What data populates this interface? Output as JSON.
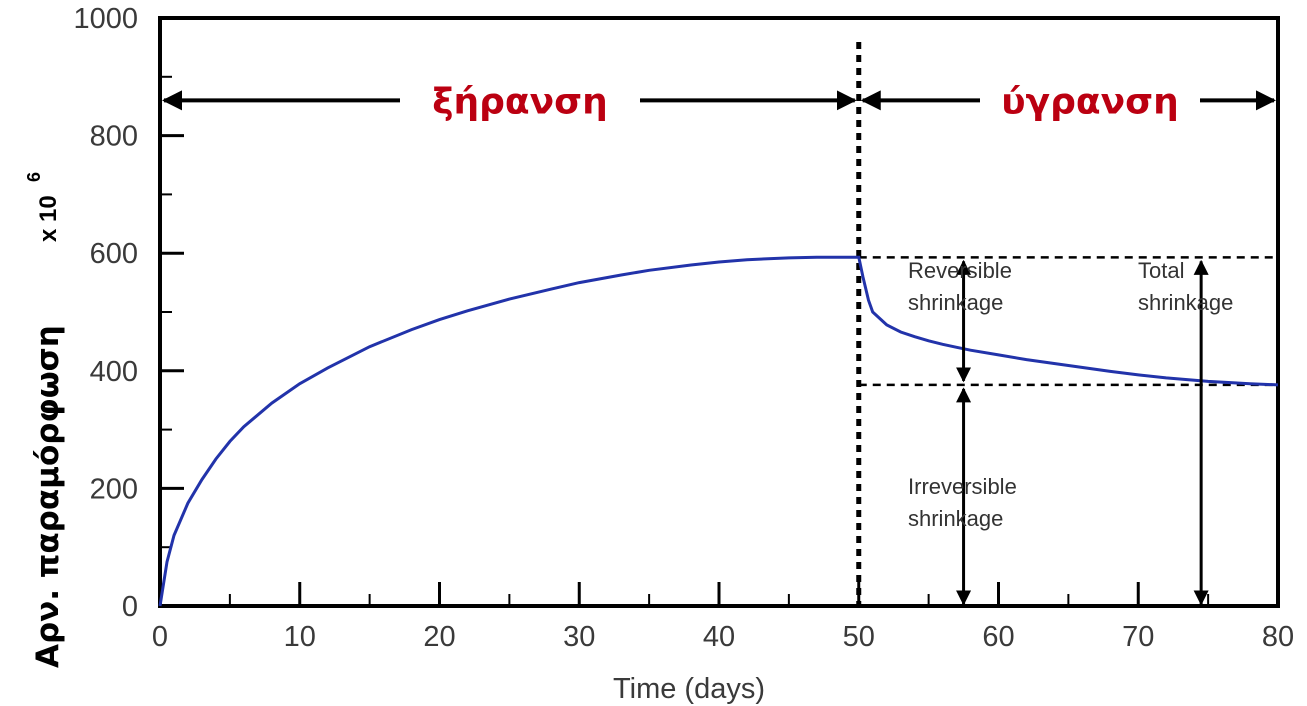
{
  "chart_data": {
    "type": "line",
    "title": "",
    "xlabel": "Time (days)",
    "ylabel": "Αρν. παραμόρφωση",
    "ylabel_suffix": "x 10",
    "ylabel_exponent": "6",
    "xlim": [
      0,
      80
    ],
    "ylim": [
      0,
      1000
    ],
    "xticks": [
      0,
      10,
      20,
      30,
      40,
      50,
      60,
      70,
      80
    ],
    "yticks": [
      0,
      200,
      400,
      600,
      800,
      1000
    ],
    "grid": false,
    "series": [
      {
        "color": "#2233aa",
        "x": [
          0,
          0.5,
          1,
          2,
          3,
          4,
          5,
          6,
          8,
          10,
          12,
          15,
          18,
          20,
          22,
          25,
          28,
          30,
          33,
          35,
          38,
          40,
          42,
          45,
          47,
          50,
          50.3,
          50.7,
          51,
          52,
          53,
          54,
          55,
          56,
          57,
          58,
          60,
          62,
          65,
          68,
          70,
          72,
          75,
          78,
          80
        ],
        "y": [
          0,
          75,
          120,
          175,
          215,
          250,
          280,
          305,
          345,
          378,
          405,
          441,
          470,
          487,
          502,
          522,
          539,
          550,
          563,
          571,
          580,
          585,
          589,
          592,
          593,
          593,
          560,
          520,
          500,
          478,
          466,
          458,
          451,
          445,
          440,
          435,
          427,
          419,
          409,
          399,
          393,
          388,
          382,
          378,
          376
        ]
      }
    ],
    "phases": [
      {
        "label": "ξήρανση",
        "from": 0,
        "to": 50,
        "color": "#bb0011"
      },
      {
        "label": "ύγρανση",
        "from": 50,
        "to": 80,
        "color": "#bb0011"
      }
    ],
    "phase_arrow_y": 860,
    "boundary_x": 50,
    "reference_levels": [
      593,
      376
    ],
    "annotations": [
      {
        "text": [
          "Reversible",
          "shrinkage"
        ],
        "arrow_x": 57.5,
        "arrow": "between-levels"
      },
      {
        "text": [
          "Total",
          "shrinkage"
        ],
        "arrow_x": 74.5,
        "arrow": "level-to-zero"
      },
      {
        "text": [
          "Irreversible",
          "shrinkage"
        ],
        "arrow_x": 57.5,
        "arrow": "lower-level-to-zero"
      }
    ]
  }
}
